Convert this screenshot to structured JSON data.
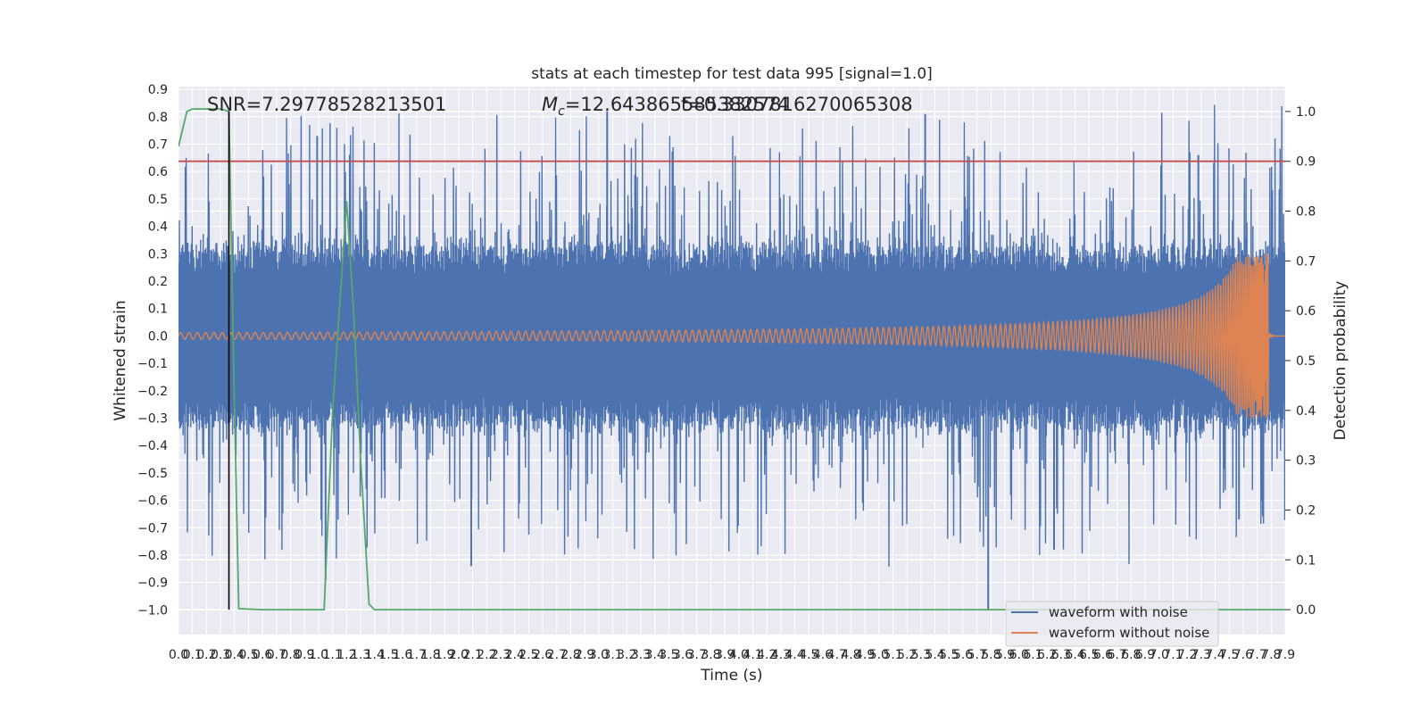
{
  "chart_data": {
    "type": "line",
    "title": "stats at each timestep for test data 995 [signal=1.0]",
    "xlabel": "Time (s)",
    "ylabel": "Whitened strain",
    "y2label": "Detection probability",
    "xlim": [
      0.0,
      7.9
    ],
    "ylim": [
      -1.09,
      0.91
    ],
    "y2lim": [
      -0.05,
      1.05
    ],
    "x_ticks": [
      0.0,
      0.1,
      0.2,
      0.3,
      0.4,
      0.5,
      0.6,
      0.7,
      0.8,
      0.9,
      1.0,
      1.1,
      1.2,
      1.3,
      1.4,
      1.5,
      1.6,
      1.7,
      1.8,
      1.9,
      2.0,
      2.1,
      2.2,
      2.3,
      2.4,
      2.5,
      2.6,
      2.7,
      2.8,
      2.9,
      3.0,
      3.1,
      3.2,
      3.3,
      3.4,
      3.5,
      3.6,
      3.7,
      3.8,
      3.9,
      4.0,
      4.1,
      4.2,
      4.3,
      4.4,
      4.5,
      4.6,
      4.7,
      4.8,
      4.9,
      5.0,
      5.1,
      5.2,
      5.3,
      5.4,
      5.5,
      5.6,
      5.7,
      5.8,
      5.9,
      6.0,
      6.1,
      6.2,
      6.3,
      6.4,
      6.5,
      6.6,
      6.7,
      6.8,
      6.9,
      7.0,
      7.1,
      7.2,
      7.3,
      7.4,
      7.5,
      7.6,
      7.7,
      7.8,
      7.9
    ],
    "y_ticks": [
      0.9,
      0.8,
      0.7,
      0.6,
      0.5,
      0.4,
      0.3,
      0.2,
      0.1,
      0.0,
      -0.1,
      -0.2,
      -0.3,
      -0.4,
      -0.5,
      -0.6,
      -0.7,
      -0.8,
      -0.9,
      -1.0
    ],
    "y2_ticks": [
      1.0,
      0.9,
      0.8,
      0.7,
      0.6,
      0.5,
      0.4,
      0.3,
      0.2,
      0.1,
      0.0
    ],
    "grid": true,
    "legend_position": "lower-right",
    "annotations": {
      "snr": "SNR=7.29778528213501",
      "mc_symbol": "M",
      "mc_subscript": "c",
      "mc_value": "=12.643865585382574",
      "overlap_text": "t=0.3307816270065308"
    },
    "threshold": {
      "axis": "y2",
      "value": 0.9
    },
    "marker_time": 0.36,
    "series": [
      {
        "name": "waveform with noise",
        "color": "#4c72b0",
        "axis": "y",
        "envelope_core": 0.3,
        "envelope_peak": 0.82,
        "outliers": [
          [
            0.99,
            0.73
          ],
          [
            1.05,
            -0.89
          ],
          [
            2.09,
            -0.84
          ],
          [
            3.06,
            0.82
          ],
          [
            5.33,
            0.81
          ],
          [
            5.78,
            -1.0
          ],
          [
            6.25,
            -0.78
          ],
          [
            7.28,
            0.66
          ],
          [
            7.57,
            -0.67
          ]
        ]
      },
      {
        "name": "waveform without noise",
        "color": "#dd8452",
        "axis": "y",
        "start_amplitude": 0.012,
        "merger_time": 7.78,
        "peak_amplitude": 0.3,
        "min_amplitude": -0.25
      },
      {
        "color": "#55a868",
        "axis": "y2",
        "x": [
          0.0,
          0.06,
          0.1,
          0.2,
          0.3,
          0.36,
          0.4,
          0.43,
          0.6,
          0.8,
          1.0,
          1.04,
          1.1,
          1.2,
          1.25,
          1.3,
          1.36,
          1.4,
          1.5,
          2.0,
          3.0,
          4.0,
          5.0,
          6.0,
          7.0,
          7.9
        ],
        "y": [
          0.93,
          1.0,
          1.005,
          1.005,
          1.005,
          1.0,
          0.4,
          0.002,
          0.0,
          0.0,
          0.0,
          0.0,
          0.4,
          0.82,
          0.6,
          0.3,
          0.011,
          0.0,
          0.0,
          0.0,
          0.0,
          0.0,
          0.0,
          0.0,
          0.0,
          0.0
        ]
      },
      {
        "color": "#c44e52",
        "axis": "y2",
        "x": [
          0.0,
          7.9
        ],
        "y": [
          0.9,
          0.9
        ]
      }
    ]
  }
}
